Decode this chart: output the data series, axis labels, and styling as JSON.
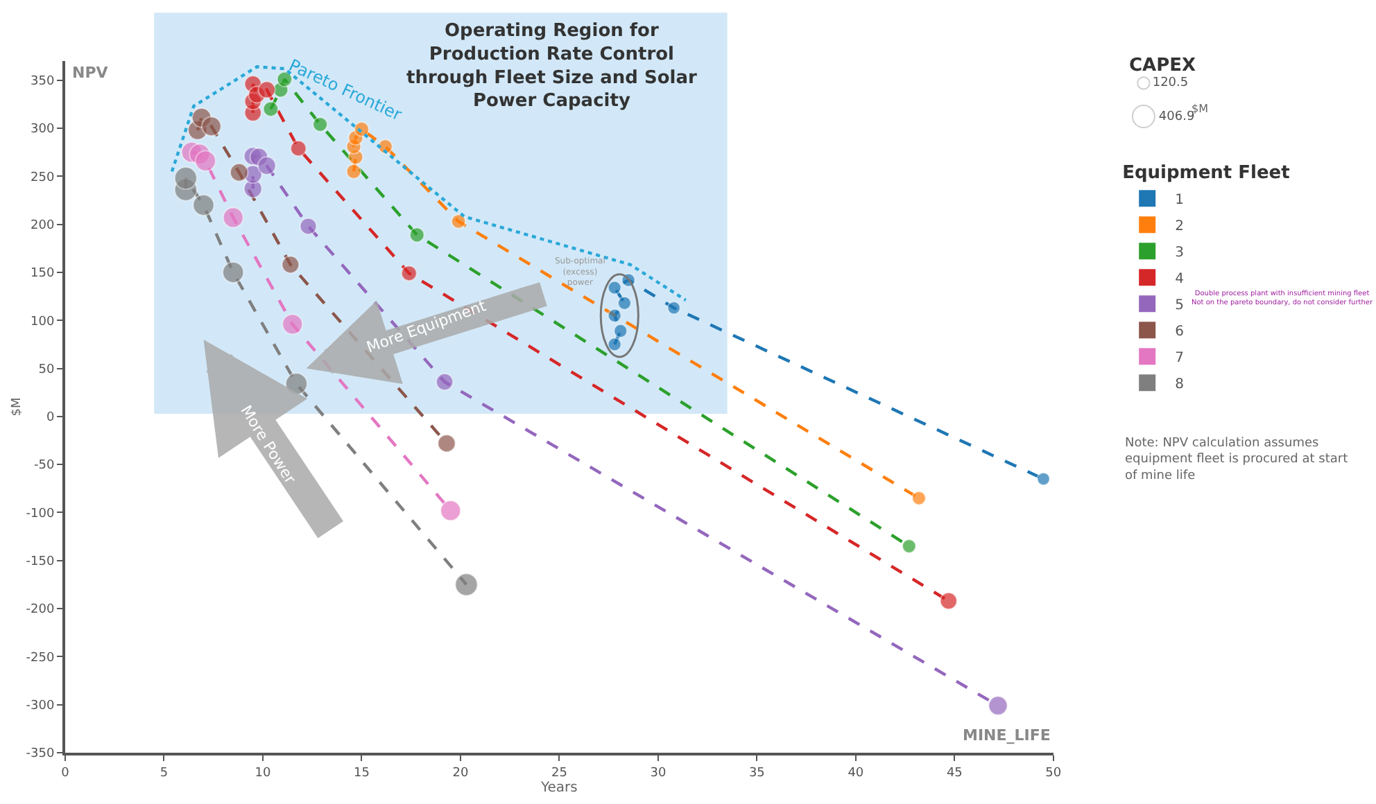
{
  "chart_data": {
    "type": "bubble",
    "xlabel": "Years",
    "ylabel": "$M",
    "legend_title": "Equipment Fleet",
    "legend": "right",
    "xlim": [
      0,
      50
    ],
    "xticks": [
      0,
      5,
      10,
      15,
      20,
      25,
      30,
      35,
      40,
      45,
      50
    ],
    "ylim": [
      -350,
      370
    ],
    "yticks": [
      -350,
      -300,
      -250,
      -200,
      -150,
      -100,
      -50,
      0,
      50,
      100,
      150,
      200,
      250,
      300,
      350
    ],
    "grid": false,
    "marker": "circle",
    "size_legend": [
      120.5,
      406.9
    ],
    "bands": [
      {
        "axis": "x",
        "from": 4.5,
        "to": 33.5,
        "color": "#cde5f7"
      }
    ],
    "series": [
      {
        "type": "line",
        "line_style": "dashed",
        "marker": "none",
        "color": "#1f77b4",
        "x": [
          27.8,
          28.1,
          27.8,
          28.3,
          27.8,
          28.5,
          30.8,
          49.5
        ],
        "values": [
          75,
          89,
          105,
          118,
          134,
          142,
          113,
          -65
        ]
      },
      {
        "type": "line",
        "line_style": "dashed",
        "marker": "none",
        "color": "#ff7f0e",
        "x": [
          14.6,
          14.7,
          14.6,
          14.7,
          15.0,
          16.2,
          19.9,
          43.2
        ],
        "values": [
          255,
          270,
          281,
          290,
          299,
          281,
          203,
          -85
        ]
      },
      {
        "type": "line",
        "line_style": "dashed",
        "marker": "none",
        "color": "#2ca02c",
        "x": [
          10.4,
          10.9,
          11.1,
          12.9,
          17.8,
          42.7
        ],
        "values": [
          320,
          340,
          351,
          304,
          189,
          -135
        ]
      },
      {
        "type": "line",
        "line_style": "dashed",
        "marker": "none",
        "color": "#d62728",
        "x": [
          9.5,
          9.5,
          9.5,
          9.7,
          10.2,
          11.8,
          17.4,
          44.7
        ],
        "values": [
          316,
          328,
          346,
          335,
          340,
          279,
          149,
          -192
        ]
      },
      {
        "type": "line",
        "line_style": "dashed",
        "marker": "none",
        "color": "#9467bd",
        "x": [
          9.5,
          9.5,
          9.5,
          9.8,
          10.2,
          12.3,
          19.2,
          47.2
        ],
        "values": [
          237,
          252,
          271,
          270,
          261,
          198,
          36,
          -301
        ]
      },
      {
        "type": "line",
        "line_style": "dashed",
        "marker": "none",
        "color": "#8c564b",
        "x": [
          6.7,
          6.9,
          7.4,
          8.8,
          11.4,
          19.3
        ],
        "values": [
          298,
          311,
          302,
          254,
          158,
          -28
        ]
      },
      {
        "type": "line",
        "line_style": "dashed",
        "marker": "none",
        "color": "#e377c2",
        "x": [
          6.4,
          6.8,
          7.1,
          8.5,
          11.5,
          19.5
        ],
        "values": [
          275,
          273,
          266,
          207,
          96,
          -98
        ]
      },
      {
        "type": "line",
        "line_style": "dashed",
        "marker": "none",
        "color": "#7f7f7f",
        "x": [
          6.1,
          6.1,
          7.0,
          8.5,
          11.7,
          20.3
        ],
        "values": [
          236,
          248,
          220,
          150,
          34,
          -175
        ]
      },
      {
        "name": "1",
        "color": "#1f77b4",
        "x": [
          27.8,
          28.1,
          27.8,
          28.3,
          27.8,
          28.5,
          30.8,
          49.5
        ],
        "values": [
          75,
          89,
          105,
          118,
          134,
          142,
          113,
          -65
        ],
        "sizes": [
          140,
          140,
          140,
          140,
          140,
          140,
          130,
          130
        ]
      },
      {
        "name": "2",
        "color": "#ff7f0e",
        "x": [
          14.6,
          14.7,
          14.6,
          14.7,
          15.0,
          16.2,
          19.9,
          43.2
        ],
        "values": [
          255,
          270,
          281,
          290,
          299,
          281,
          203,
          -85
        ],
        "sizes": [
          170,
          170,
          170,
          170,
          170,
          160,
          160,
          150
        ]
      },
      {
        "name": "3",
        "color": "#2ca02c",
        "x": [
          10.4,
          10.9,
          11.1,
          12.9,
          17.8,
          42.7
        ],
        "values": [
          320,
          340,
          351,
          304,
          189,
          -135
        ],
        "sizes": [
          180,
          180,
          180,
          170,
          170,
          150
        ]
      },
      {
        "name": "4",
        "color": "#d62728",
        "x": [
          9.5,
          9.5,
          9.5,
          9.7,
          10.2,
          11.8,
          17.4,
          44.7
        ],
        "values": [
          316,
          328,
          346,
          335,
          340,
          279,
          149,
          -192
        ],
        "sizes": [
          230,
          230,
          230,
          230,
          230,
          200,
          190,
          230
        ]
      },
      {
        "name": "5",
        "color": "#9467bd",
        "x": [
          9.5,
          9.5,
          9.5,
          9.8,
          10.2,
          12.3,
          19.2,
          47.2
        ],
        "values": [
          237,
          252,
          271,
          270,
          261,
          198,
          36,
          -301
        ],
        "sizes": [
          260,
          260,
          260,
          260,
          260,
          220,
          230,
          290
        ]
      },
      {
        "name": "6",
        "color": "#8c564b",
        "x": [
          6.7,
          6.9,
          7.4,
          8.8,
          11.4,
          19.3
        ],
        "values": [
          298,
          311,
          302,
          254,
          158,
          -28
        ],
        "sizes": [
          300,
          300,
          300,
          260,
          240,
          250
        ]
      },
      {
        "name": "7",
        "color": "#e377c2",
        "x": [
          6.4,
          6.8,
          7.1,
          8.5,
          11.5,
          19.5
        ],
        "values": [
          275,
          273,
          266,
          207,
          96,
          -98
        ],
        "sizes": [
          340,
          340,
          340,
          330,
          330,
          330
        ]
      },
      {
        "name": "8",
        "color": "#7f7f7f",
        "x": [
          6.1,
          6.1,
          7.0,
          8.5,
          11.7,
          20.3
        ],
        "values": [
          236,
          248,
          220,
          150,
          34,
          -175
        ],
        "sizes": [
          406.9,
          406.9,
          360,
          360,
          380,
          406.9
        ]
      },
      {
        "name": "Pareto Frontier",
        "type": "line",
        "color": "#2aa8d8",
        "line_style": "dotted",
        "marker": "none",
        "x": [
          5.4,
          6.5,
          9.7,
          11.1,
          20.2,
          28.6,
          31.4
        ],
        "values": [
          255,
          323,
          364,
          362,
          208,
          158,
          121
        ]
      }
    ],
    "annotations": [
      "Operating Region for Production Rate Control through Fleet Size and Solar Power Capacity",
      "Sub-optimal (excess) power",
      "More Equipment",
      "More Power",
      "Double process plant with insufficient mining fleet Not on the pareto boundary, do not consider further",
      "Note: NPV calculation assumes equipment fleet is procured at start of mine life",
      "NPV",
      "MINE_LIFE",
      "CAPEX",
      "$M"
    ]
  }
}
